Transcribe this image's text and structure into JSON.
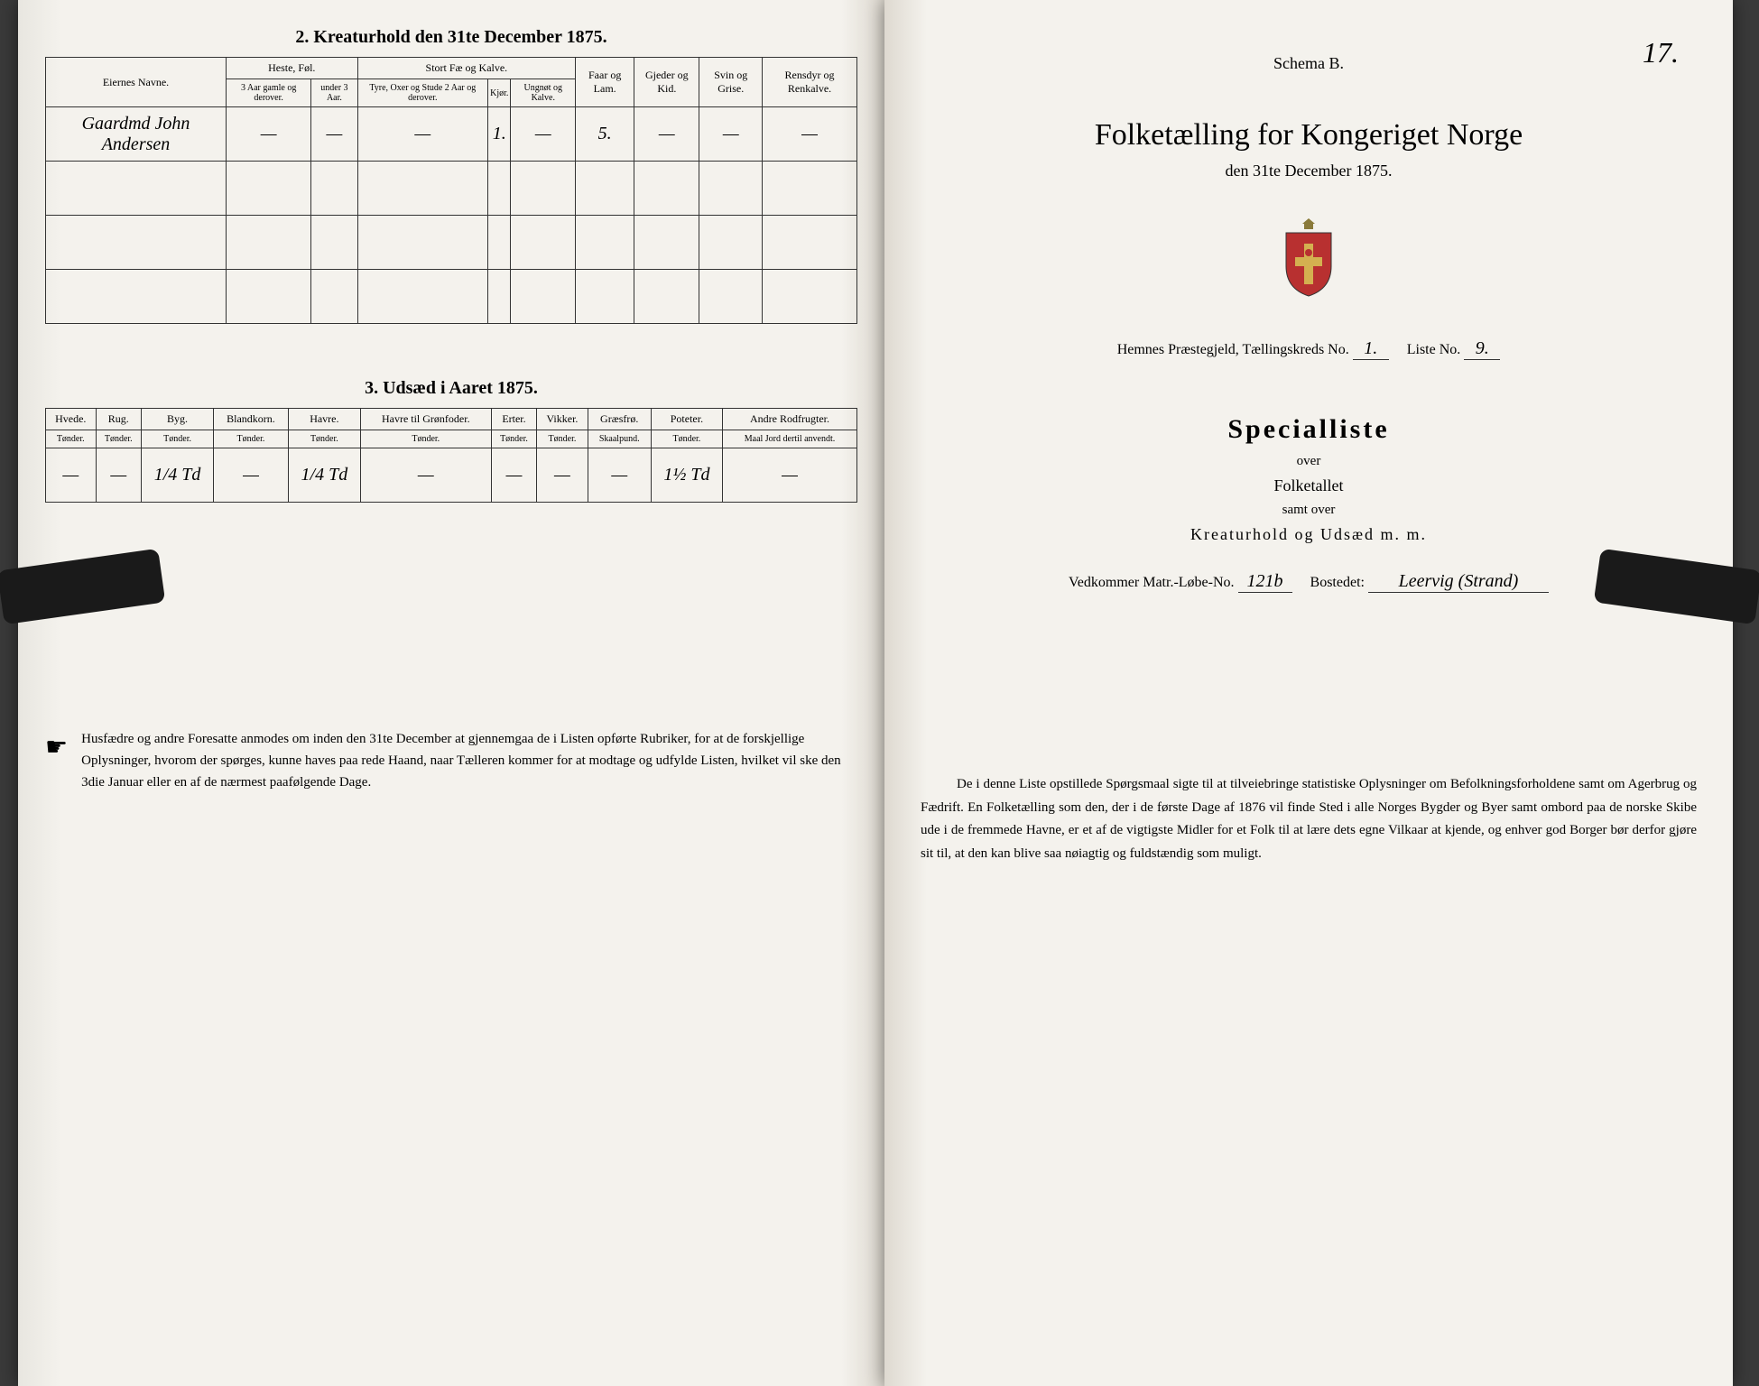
{
  "left": {
    "section2_title": "2. Kreaturhold den 31te December 1875.",
    "table2": {
      "col_eier": "Eiernes Navne.",
      "grp_heste": "Heste, Føl.",
      "grp_storfe": "Stort Fæ og Kalve.",
      "col_faar": "Faar og Lam.",
      "col_gjeder": "Gjeder og Kid.",
      "col_svin": "Svin og Grise.",
      "col_rensdyr": "Rensdyr og Renkalve.",
      "sub_heste1": "3 Aar gamle og derover.",
      "sub_heste2": "under 3 Aar.",
      "sub_stor1": "Tyre, Oxer og Stude 2 Aar og derover.",
      "sub_stor2": "Kjør.",
      "sub_stor3": "Ungnøt og Kalve.",
      "row1": {
        "name": "Gaardmd John Andersen",
        "h1": "—",
        "h2": "—",
        "s1": "—",
        "s2": "1.",
        "s3": "—",
        "faar": "5.",
        "gjed": "—",
        "svin": "—",
        "ren": "—"
      }
    },
    "section3_title": "3. Udsæd i Aaret 1875.",
    "table3": {
      "cols": [
        "Hvede.",
        "Rug.",
        "Byg.",
        "Blandkorn.",
        "Havre.",
        "Havre til Grønfoder.",
        "Erter.",
        "Vikker.",
        "Græsfrø.",
        "Poteter.",
        "Andre Rodfrugter."
      ],
      "units": [
        "Tønder.",
        "Tønder.",
        "Tønder.",
        "Tønder.",
        "Tønder.",
        "Tønder.",
        "Tønder.",
        "Tønder.",
        "Skaalpund.",
        "Tønder.",
        "Maal Jord dertil anvendt."
      ],
      "row": [
        "—",
        "—",
        "1/4 Td",
        "—",
        "1/4 Td",
        "—",
        "—",
        "—",
        "—",
        "1½ Td",
        "—"
      ]
    },
    "footnote": "Husfædre og andre Foresatte anmodes om inden den 31te December at gjennemgaa de i Listen opførte Rubriker, for at de forskjellige Oplysninger, hvorom der spørges, kunne haves paa rede Haand, naar Tælleren kommer for at modtage og udfylde Listen, hvilket vil ske den 3die Januar eller en af de nærmest paafølgende Dage."
  },
  "right": {
    "schema": "Schema B.",
    "page_num": "17.",
    "main_title": "Folketælling for Kongeriget Norge",
    "sub_title": "den 31te December 1875.",
    "parish_label": "Hemnes Præstegjeld,  Tællingskreds No.",
    "kreds_no": "1.",
    "liste_label": "Liste No.",
    "liste_no": "9.",
    "special": "Specialliste",
    "over": "over",
    "folketallet": "Folketallet",
    "samt": "samt over",
    "kreatur": "Kreaturhold og Udsæd m. m.",
    "vedkommer_label": "Vedkommer Matr.-Løbe-No.",
    "matr_no": "121b",
    "bosted_label": "Bostedet:",
    "bosted": "Leervig (Strand)",
    "footnote": "De i denne Liste opstillede Spørgsmaal sigte til at tilveiebringe statistiske Oplysninger om Befolkningsforholdene samt om Agerbrug og Fædrift. En Folketælling som den, der i de første Dage af 1876 vil finde Sted i alle Norges Bygder og Byer samt ombord paa de norske Skibe ude i de fremmede Havne, er et af de vigtigste Midler for et Folk til at lære dets egne Vilkaar at kjende, og enhver god Borger bør derfor gjøre sit til, at den kan blive saa nøiagtig og fuldstændig som muligt."
  }
}
